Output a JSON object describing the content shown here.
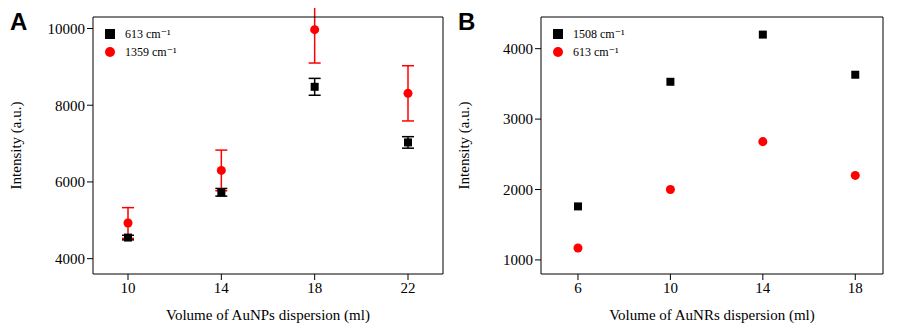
{
  "chart_data": [
    {
      "type": "scatter",
      "title": "A",
      "x_label": "Volume of AuNPs dispersion (ml)",
      "y_label": "Intensity (a.u.)",
      "xlim": [
        8.5,
        23.5
      ],
      "xticks": [
        10,
        14,
        18,
        22
      ],
      "ylim": [
        3600,
        10300
      ],
      "yticks": [
        4000,
        6000,
        8000,
        10000
      ],
      "legend": "upper left",
      "grid": false,
      "series": [
        {
          "name": "613 cm⁻¹",
          "color": "#000000",
          "marker": "square",
          "x": [
            10,
            14,
            18,
            22
          ],
          "values": [
            4550,
            5730,
            8480,
            7030
          ],
          "errors": [
            60,
            100,
            220,
            150
          ]
        },
        {
          "name": "1359 cm⁻¹",
          "color": "#ff0000",
          "marker": "circle",
          "x": [
            10,
            14,
            18,
            22
          ],
          "values": [
            4930,
            6300,
            9970,
            8310
          ],
          "errors": [
            400,
            530,
            870,
            720
          ]
        }
      ]
    },
    {
      "type": "scatter",
      "title": "B",
      "x_label": "Volume of AuNRs dispersion (ml)",
      "y_label": "Intensity (a.u.)",
      "xlim": [
        4.4,
        19.2
      ],
      "xticks": [
        6,
        10,
        14,
        18
      ],
      "ylim": [
        800,
        4450
      ],
      "yticks": [
        1000,
        2000,
        3000,
        4000
      ],
      "legend": "upper left",
      "grid": false,
      "series": [
        {
          "name": "1508 cm⁻¹",
          "color": "#000000",
          "marker": "square",
          "x": [
            6,
            10,
            14,
            18
          ],
          "values": [
            1760,
            3530,
            4200,
            3630
          ]
        },
        {
          "name": "613 cm⁻¹",
          "color": "#ff0000",
          "marker": "circle",
          "x": [
            6,
            10,
            14,
            18
          ],
          "values": [
            1170,
            2000,
            2680,
            2200
          ]
        }
      ]
    }
  ]
}
